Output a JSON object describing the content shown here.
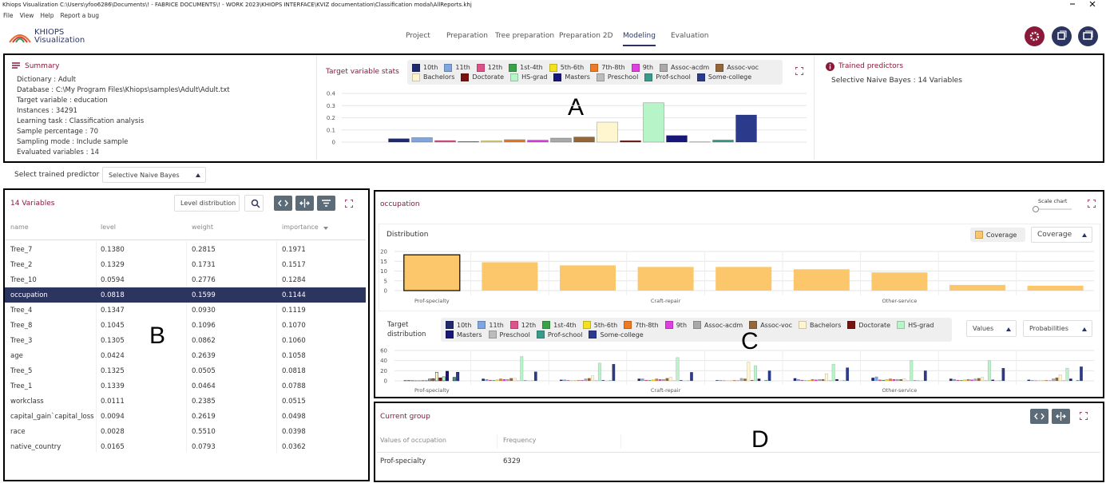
{
  "window": {
    "title": "Khiops Visualization C:\\Users\\yfoo6286\\Documents\\! - FABRICE DOCUMENTS\\! - WORK 2023\\KHIOPS INTERFACE\\KVIZ documentation\\Classification modal\\AllReports.khj"
  },
  "menu": [
    "File",
    "View",
    "Help",
    "Report a bug"
  ],
  "logo": {
    "name": "KHIOPS",
    "subtitle": "Visualization"
  },
  "tabs": {
    "items": [
      "Project",
      "Preparation",
      "Tree preparation",
      "Preparation 2D",
      "Modeling",
      "Evaluation"
    ],
    "active": 4
  },
  "summary": {
    "title": "Summary",
    "lines": [
      "Dictionary : Adult",
      "Database : C:\\My Program Files\\Khiops\\samples\\Adult\\Adult.txt",
      "Target variable : education",
      "Instances : 34291",
      "Learning task : Classification analysis",
      "Sample percentage : 70",
      "Sampling mode : Include sample",
      "Evaluated variables : 14"
    ]
  },
  "target_stats": {
    "chart_data": {
      "type": "bar",
      "title": "Target variable stats",
      "categories": [
        "10th",
        "11th",
        "12th",
        "1st-4th",
        "5th-6th",
        "7th-8th",
        "9th",
        "Assoc-acdm",
        "Assoc-voc",
        "Bachelors",
        "Doctorate",
        "HS-grad",
        "Masters",
        "Preschool",
        "Prof-school",
        "Some-college"
      ],
      "colors": [
        "#1f2a6e",
        "#7fa6df",
        "#e0508a",
        "#3aa34a",
        "#f2e11e",
        "#ef7a22",
        "#df3fe0",
        "#a9a9a9",
        "#94673a",
        "#fff5cf",
        "#7a1212",
        "#b7f5c9",
        "#17177a",
        "#bcbcbc",
        "#3b9b8a",
        "#2c3a8c"
      ],
      "values": [
        0.028,
        0.037,
        0.013,
        0.005,
        0.01,
        0.02,
        0.016,
        0.033,
        0.042,
        0.164,
        0.012,
        0.323,
        0.054,
        0.002,
        0.017,
        0.223
      ],
      "ylim": [
        0,
        0.4
      ],
      "yticks": [
        0,
        0.1,
        0.2,
        0.3,
        0.4
      ],
      "grid": true
    }
  },
  "trained_predictors": {
    "title": "Trained predictors",
    "text": "Selective Naive Bayes : 14 Variables"
  },
  "predictor_select": {
    "label": "Select trained predictor",
    "value": "Selective Naive Bayes"
  },
  "variables": {
    "title": "14 Variables",
    "button": "Level distribution",
    "table": {
      "columns": [
        "name",
        "level",
        "weight",
        "importance"
      ],
      "selected": 3,
      "rows": [
        [
          "Tree_7",
          "0.1380",
          "0.2815",
          "0.1971"
        ],
        [
          "Tree_2",
          "0.1329",
          "0.1731",
          "0.1517"
        ],
        [
          "Tree_10",
          "0.0594",
          "0.2776",
          "0.1284"
        ],
        [
          "occupation",
          "0.0818",
          "0.1599",
          "0.1144"
        ],
        [
          "Tree_4",
          "0.1347",
          "0.0930",
          "0.1119"
        ],
        [
          "Tree_8",
          "0.1045",
          "0.1096",
          "0.1070"
        ],
        [
          "Tree_3",
          "0.1305",
          "0.0862",
          "0.1060"
        ],
        [
          "age",
          "0.0424",
          "0.2639",
          "0.1058"
        ],
        [
          "Tree_5",
          "0.1325",
          "0.0505",
          "0.0818"
        ],
        [
          "Tree_1",
          "0.1339",
          "0.0464",
          "0.0788"
        ],
        [
          "workclass",
          "0.0111",
          "0.2385",
          "0.0515"
        ],
        [
          "capital_gain`capital_loss",
          "0.0094",
          "0.2619",
          "0.0498"
        ],
        [
          "race",
          "0.0028",
          "0.5510",
          "0.0398"
        ],
        [
          "native_country",
          "0.0165",
          "0.0793",
          "0.0362"
        ]
      ]
    }
  },
  "occupation": {
    "title": "occupation",
    "scale_label": "Scale chart",
    "distribution": {
      "chart_data": {
        "type": "bar",
        "title": "Distribution",
        "legend": "Coverage",
        "dropdown": "Coverage",
        "color": "#fbc76a",
        "selected": 0,
        "categories": [
          "Prof-specialty",
          null,
          null,
          "Craft-repair",
          null,
          null,
          "Other-service",
          null,
          null
        ],
        "values": [
          18.3,
          14.5,
          12.9,
          12.1,
          12.1,
          10.9,
          9.3,
          2.9,
          2.5
        ],
        "ylim": [
          0,
          20
        ],
        "yticks": [
          0,
          5,
          10,
          15,
          20
        ],
        "grid": true
      }
    },
    "target_distribution": {
      "chart_data": {
        "type": "bar",
        "title": "Target distribution",
        "dropdowns": [
          "Values",
          "Probabilities"
        ],
        "categories": [
          "Prof-specialty",
          null,
          null,
          "Craft-repair",
          null,
          null,
          "Other-service",
          null,
          null
        ],
        "ylim": [
          0,
          60
        ],
        "yticks": [
          0,
          20,
          40,
          60
        ],
        "grid": true,
        "series": [
          {
            "name": "10th",
            "color": "#1f2a6e",
            "values": [
              0.5,
              4,
              2,
              4,
              1,
              5,
              6,
              4,
              2
            ]
          },
          {
            "name": "11th",
            "color": "#7fa6df",
            "values": [
              0.5,
              3,
              2,
              4,
              1,
              3,
              8,
              3,
              1
            ]
          },
          {
            "name": "12th",
            "color": "#e0508a",
            "values": [
              0.3,
              1.5,
              1,
              1.5,
              0.5,
              1.5,
              2,
              1.5,
              0.5
            ]
          },
          {
            "name": "1st-4th",
            "color": "#3aa34a",
            "values": [
              0.1,
              1,
              0.2,
              1,
              0.1,
              0.5,
              1.5,
              1,
              0.2
            ]
          },
          {
            "name": "5th-6th",
            "color": "#f2e11e",
            "values": [
              0.1,
              2,
              0.5,
              2,
              0.3,
              1,
              3,
              2,
              0.5
            ]
          },
          {
            "name": "7th-8th",
            "color": "#ef7a22",
            "values": [
              0.3,
              4,
              1,
              4,
              1,
              3,
              4,
              3,
              1
            ]
          },
          {
            "name": "9th",
            "color": "#df3fe0",
            "values": [
              0.2,
              3,
              1,
              3,
              0.5,
              2,
              3,
              2,
              0.5
            ]
          },
          {
            "name": "Assoc-acdm",
            "color": "#a9a9a9",
            "values": [
              3.5,
              3,
              4,
              3,
              5,
              3,
              3,
              4,
              4
            ]
          },
          {
            "name": "Assoc-voc",
            "color": "#94673a",
            "values": [
              4.5,
              5,
              5,
              5,
              4,
              3,
              3,
              5,
              6
            ]
          },
          {
            "name": "Bachelors",
            "color": "#fff5cf",
            "values": [
              17,
              5,
              10,
              7,
              37,
              14,
              4,
              7,
              12
            ]
          },
          {
            "name": "Doctorate",
            "color": "#7a1212",
            "values": [
              6,
              0.1,
              0.2,
              0.1,
              1,
              0.2,
              0.1,
              0.2,
              0.2
            ]
          },
          {
            "name": "HS-grad",
            "color": "#b7f5c9",
            "values": [
              8,
              48,
              35,
              46,
              30,
              33,
              40,
              40,
              25
            ]
          },
          {
            "name": "Masters",
            "color": "#17177a",
            "values": [
              19,
              0.5,
              1,
              1,
              4,
              3,
              0.5,
              2,
              4
            ]
          },
          {
            "name": "Preschool",
            "color": "#bcbcbc",
            "values": [
              0,
              0.2,
              0.1,
              0.1,
              0,
              0.1,
              0.5,
              0.2,
              0
            ]
          },
          {
            "name": "Prof-school",
            "color": "#3b9b8a",
            "values": [
              7,
              0.2,
              0.5,
              0.3,
              1,
              0.5,
              0.1,
              0.3,
              1
            ]
          },
          {
            "name": "Some-college",
            "color": "#2c3a8c",
            "values": [
              17,
              18,
              33,
              17,
              20,
              26,
              20,
              25,
              28
            ]
          }
        ]
      }
    }
  },
  "current_group": {
    "title": "Current group",
    "columns": [
      "Values of occupation",
      "Frequency"
    ],
    "rows": [
      [
        "Prof-specialty",
        "6329"
      ]
    ]
  },
  "annotations": [
    "A",
    "B",
    "C",
    "D"
  ]
}
